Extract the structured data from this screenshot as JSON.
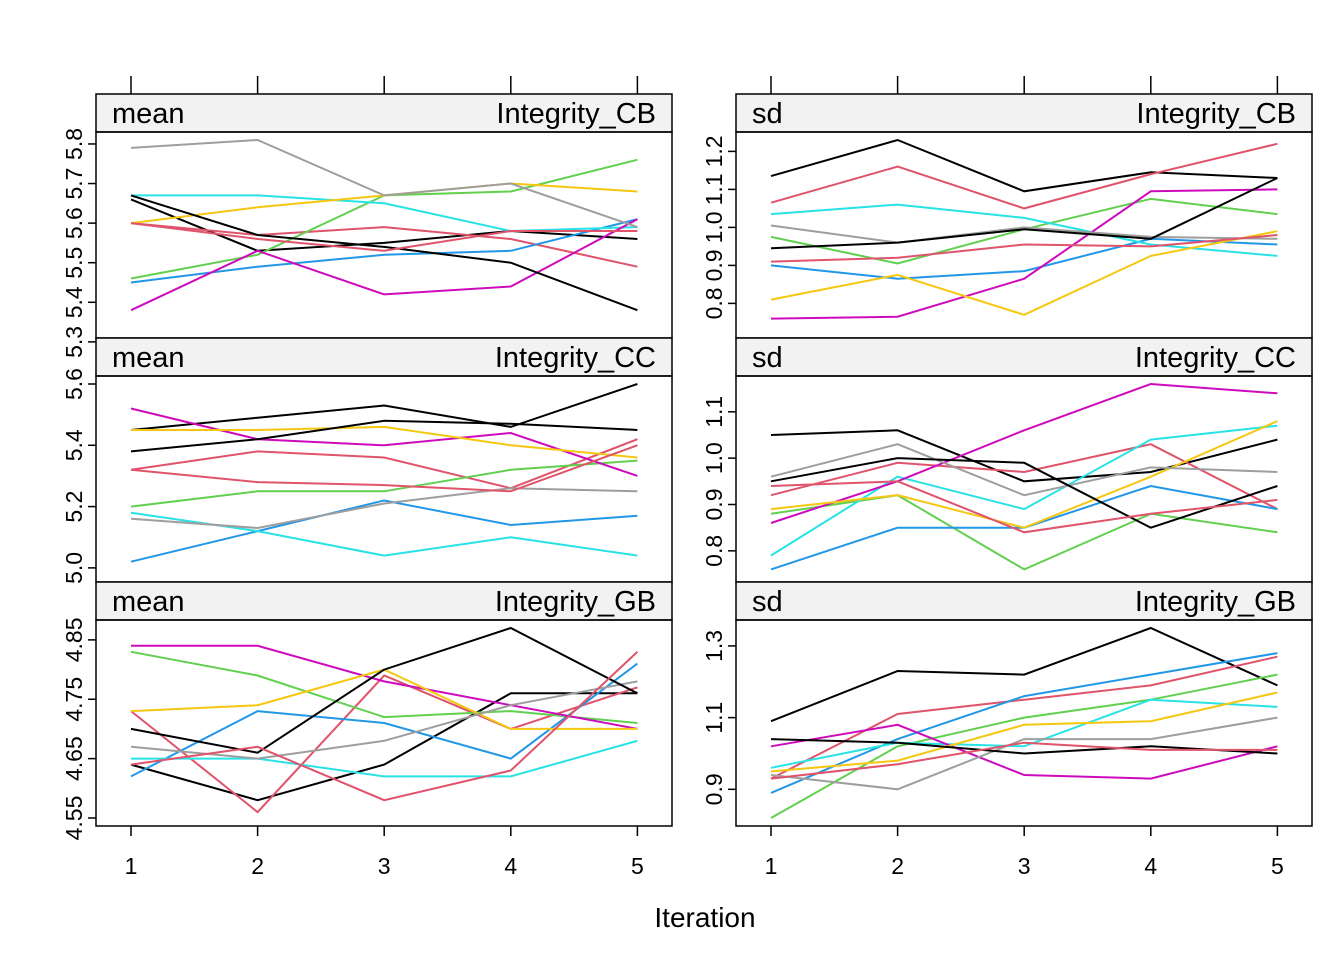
{
  "xlabel": "Iteration",
  "x_ticks": [
    1,
    2,
    3,
    4,
    5
  ],
  "chart_data": [
    {
      "type": "line",
      "stat": "mean",
      "variable": "Integrity_CB",
      "x": [
        1,
        2,
        3,
        4,
        5
      ],
      "y_ticks": [
        "5.3",
        "5.4",
        "5.5",
        "5.6",
        "5.7",
        "5.8"
      ],
      "ylim": [
        5.33,
        5.81
      ],
      "series": [
        {
          "color": "#000000",
          "values": [
            5.66,
            5.53,
            5.55,
            5.58,
            5.56
          ]
        },
        {
          "color": "#DF536B",
          "values": [
            5.6,
            5.57,
            5.59,
            5.56,
            5.49
          ]
        },
        {
          "color": "#61D04F",
          "values": [
            5.46,
            5.52,
            5.67,
            5.68,
            5.76
          ]
        },
        {
          "color": "#2297E6",
          "values": [
            5.45,
            5.49,
            5.52,
            5.53,
            5.61
          ]
        },
        {
          "color": "#28E2E5",
          "values": [
            5.67,
            5.67,
            5.65,
            5.58,
            5.59
          ]
        },
        {
          "color": "#CD0BBC",
          "values": [
            5.38,
            5.53,
            5.42,
            5.44,
            5.61
          ]
        },
        {
          "color": "#F5C710",
          "values": [
            5.6,
            5.64,
            5.67,
            5.7,
            5.68
          ]
        },
        {
          "color": "#9E9E9E",
          "values": [
            5.79,
            5.81,
            5.67,
            5.7,
            5.59
          ]
        },
        {
          "color": "#000000",
          "values": [
            5.67,
            5.57,
            5.54,
            5.5,
            5.38
          ]
        },
        {
          "color": "#DF536B",
          "values": [
            5.6,
            5.56,
            5.53,
            5.58,
            5.58
          ]
        }
      ]
    },
    {
      "type": "line",
      "stat": "sd",
      "variable": "Integrity_CB",
      "x": [
        1,
        2,
        3,
        4,
        5
      ],
      "y_ticks": [
        "0.8",
        "0.9",
        "1.0",
        "1.1",
        "1.2"
      ],
      "ylim": [
        0.73,
        1.23
      ],
      "series": [
        {
          "color": "#000000",
          "values": [
            1.135,
            1.23,
            1.095,
            1.145,
            1.13
          ]
        },
        {
          "color": "#DF536B",
          "values": [
            1.065,
            1.16,
            1.05,
            1.14,
            1.22
          ]
        },
        {
          "color": "#61D04F",
          "values": [
            0.975,
            0.905,
            0.995,
            1.075,
            1.035
          ]
        },
        {
          "color": "#2297E6",
          "values": [
            0.9,
            0.865,
            0.885,
            0.97,
            0.955
          ]
        },
        {
          "color": "#28E2E5",
          "values": [
            1.035,
            1.06,
            1.025,
            0.955,
            0.925
          ]
        },
        {
          "color": "#CD0BBC",
          "values": [
            0.76,
            0.765,
            0.865,
            1.095,
            1.1
          ]
        },
        {
          "color": "#F5C710",
          "values": [
            0.81,
            0.875,
            0.77,
            0.925,
            0.99
          ]
        },
        {
          "color": "#9E9E9E",
          "values": [
            1.005,
            0.96,
            1.0,
            0.975,
            0.97
          ]
        },
        {
          "color": "#000000",
          "values": [
            0.945,
            0.96,
            0.995,
            0.97,
            1.13
          ]
        },
        {
          "color": "#DF536B",
          "values": [
            0.91,
            0.92,
            0.955,
            0.95,
            0.98
          ]
        }
      ]
    },
    {
      "type": "line",
      "stat": "mean",
      "variable": "Integrity_CC",
      "x": [
        1,
        2,
        3,
        4,
        5
      ],
      "y_ticks": [
        "5.0",
        "5.2",
        "5.4",
        "5.6"
      ],
      "ylim": [
        4.98,
        5.6
      ],
      "series": [
        {
          "color": "#000000",
          "values": [
            5.45,
            5.49,
            5.53,
            5.46,
            5.6
          ]
        },
        {
          "color": "#DF536B",
          "values": [
            5.32,
            5.38,
            5.36,
            5.26,
            5.42
          ]
        },
        {
          "color": "#61D04F",
          "values": [
            5.2,
            5.25,
            5.25,
            5.32,
            5.35
          ]
        },
        {
          "color": "#2297E6",
          "values": [
            5.02,
            5.12,
            5.22,
            5.14,
            5.17
          ]
        },
        {
          "color": "#28E2E5",
          "values": [
            5.18,
            5.12,
            5.04,
            5.1,
            5.04
          ]
        },
        {
          "color": "#CD0BBC",
          "values": [
            5.52,
            5.42,
            5.4,
            5.44,
            5.3
          ]
        },
        {
          "color": "#F5C710",
          "values": [
            5.45,
            5.45,
            5.46,
            5.4,
            5.36
          ]
        },
        {
          "color": "#9E9E9E",
          "values": [
            5.16,
            5.13,
            5.21,
            5.26,
            5.25
          ]
        },
        {
          "color": "#000000",
          "values": [
            5.38,
            5.42,
            5.48,
            5.47,
            5.45
          ]
        },
        {
          "color": "#DF536B",
          "values": [
            5.32,
            5.28,
            5.27,
            5.25,
            5.4
          ]
        }
      ]
    },
    {
      "type": "line",
      "stat": "sd",
      "variable": "Integrity_CC",
      "x": [
        1,
        2,
        3,
        4,
        5
      ],
      "y_ticks": [
        "0.8",
        "0.9",
        "1.0",
        "1.1"
      ],
      "ylim": [
        0.75,
        1.16
      ],
      "series": [
        {
          "color": "#000000",
          "values": [
            1.05,
            1.06,
            0.95,
            0.97,
            1.04
          ]
        },
        {
          "color": "#DF536B",
          "values": [
            0.92,
            0.99,
            0.97,
            1.03,
            0.89
          ]
        },
        {
          "color": "#61D04F",
          "values": [
            0.88,
            0.92,
            0.76,
            0.88,
            0.84
          ]
        },
        {
          "color": "#2297E6",
          "values": [
            0.76,
            0.85,
            0.85,
            0.94,
            0.89
          ]
        },
        {
          "color": "#28E2E5",
          "values": [
            0.79,
            0.96,
            0.89,
            1.04,
            1.07
          ]
        },
        {
          "color": "#CD0BBC",
          "values": [
            0.86,
            0.95,
            1.06,
            1.16,
            1.14
          ]
        },
        {
          "color": "#F5C710",
          "values": [
            0.89,
            0.92,
            0.85,
            0.96,
            1.08
          ]
        },
        {
          "color": "#9E9E9E",
          "values": [
            0.96,
            1.03,
            0.92,
            0.98,
            0.97
          ]
        },
        {
          "color": "#000000",
          "values": [
            0.95,
            1.0,
            0.99,
            0.85,
            0.94
          ]
        },
        {
          "color": "#DF536B",
          "values": [
            0.94,
            0.95,
            0.84,
            0.88,
            0.91
          ]
        }
      ]
    },
    {
      "type": "line",
      "stat": "mean",
      "variable": "Integrity_GB",
      "x": [
        1,
        2,
        3,
        4,
        5
      ],
      "y_ticks": [
        "4.55",
        "4.65",
        "4.75",
        "4.85"
      ],
      "ylim": [
        4.55,
        4.87
      ],
      "series": [
        {
          "color": "#000000",
          "values": [
            4.64,
            4.58,
            4.64,
            4.76,
            4.76
          ]
        },
        {
          "color": "#DF536B",
          "values": [
            4.73,
            4.56,
            4.79,
            4.7,
            4.77
          ]
        },
        {
          "color": "#61D04F",
          "values": [
            4.83,
            4.79,
            4.72,
            4.73,
            4.71
          ]
        },
        {
          "color": "#2297E6",
          "values": [
            4.62,
            4.73,
            4.71,
            4.65,
            4.81
          ]
        },
        {
          "color": "#28E2E5",
          "values": [
            4.65,
            4.65,
            4.62,
            4.62,
            4.68
          ]
        },
        {
          "color": "#CD0BBC",
          "values": [
            4.84,
            4.84,
            4.78,
            4.74,
            4.7
          ]
        },
        {
          "color": "#F5C710",
          "values": [
            4.73,
            4.74,
            4.8,
            4.7,
            4.7
          ]
        },
        {
          "color": "#9E9E9E",
          "values": [
            4.67,
            4.65,
            4.68,
            4.74,
            4.78
          ]
        },
        {
          "color": "#000000",
          "values": [
            4.7,
            4.66,
            4.8,
            4.87,
            4.76
          ]
        },
        {
          "color": "#DF536B",
          "values": [
            4.64,
            4.67,
            4.58,
            4.63,
            4.83
          ]
        }
      ]
    },
    {
      "type": "line",
      "stat": "sd",
      "variable": "Integrity_GB",
      "x": [
        1,
        2,
        3,
        4,
        5
      ],
      "y_ticks": [
        "0.9",
        "1.1",
        "1.3"
      ],
      "ylim": [
        0.82,
        1.35
      ],
      "series": [
        {
          "color": "#000000",
          "values": [
            1.09,
            1.23,
            1.22,
            1.35,
            1.19
          ]
        },
        {
          "color": "#DF536B",
          "values": [
            0.93,
            1.11,
            1.15,
            1.19,
            1.27
          ]
        },
        {
          "color": "#61D04F",
          "values": [
            0.82,
            1.02,
            1.1,
            1.15,
            1.22
          ]
        },
        {
          "color": "#2297E6",
          "values": [
            0.89,
            1.04,
            1.16,
            1.22,
            1.28
          ]
        },
        {
          "color": "#28E2E5",
          "values": [
            0.96,
            1.03,
            1.02,
            1.15,
            1.13
          ]
        },
        {
          "color": "#CD0BBC",
          "values": [
            1.02,
            1.08,
            0.94,
            0.93,
            1.02
          ]
        },
        {
          "color": "#F5C710",
          "values": [
            0.95,
            0.98,
            1.08,
            1.09,
            1.17
          ]
        },
        {
          "color": "#9E9E9E",
          "values": [
            0.94,
            0.9,
            1.04,
            1.04,
            1.1
          ]
        },
        {
          "color": "#000000",
          "values": [
            1.04,
            1.03,
            1.0,
            1.02,
            1.0
          ]
        },
        {
          "color": "#DF536B",
          "values": [
            0.93,
            0.97,
            1.03,
            1.01,
            1.01
          ]
        }
      ]
    }
  ]
}
